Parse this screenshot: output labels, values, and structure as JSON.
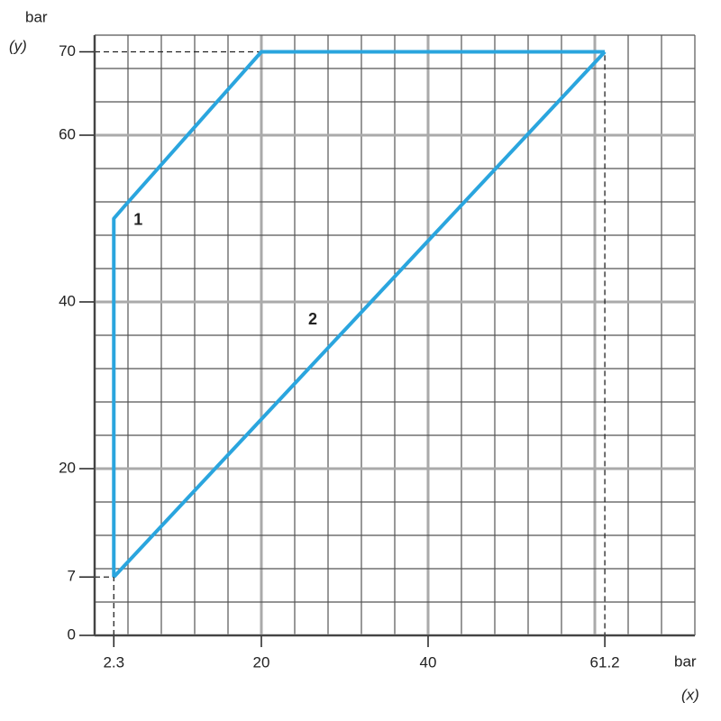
{
  "chart_data": {
    "type": "line",
    "y_label": "bar",
    "y_symbol": "(y)",
    "x_label": "bar",
    "x_symbol": "(x)",
    "xlim": [
      0,
      72
    ],
    "ylim": [
      0,
      72
    ],
    "xticks": [
      2.3,
      20,
      40,
      61.2
    ],
    "yticks": [
      0,
      7,
      20,
      40,
      60,
      70
    ],
    "grid": true,
    "grid_step": 4,
    "major_grid_step": 20,
    "series": [
      {
        "name": "1",
        "color": "#2aa5de",
        "x": [
          2.3,
          2.3,
          3.6,
          20,
          61.2
        ],
        "values": [
          7,
          50,
          51.5,
          70,
          70
        ]
      },
      {
        "name": "2",
        "color": "#2aa5de",
        "x": [
          2.3,
          61.2
        ],
        "values": [
          7,
          70
        ]
      }
    ]
  }
}
